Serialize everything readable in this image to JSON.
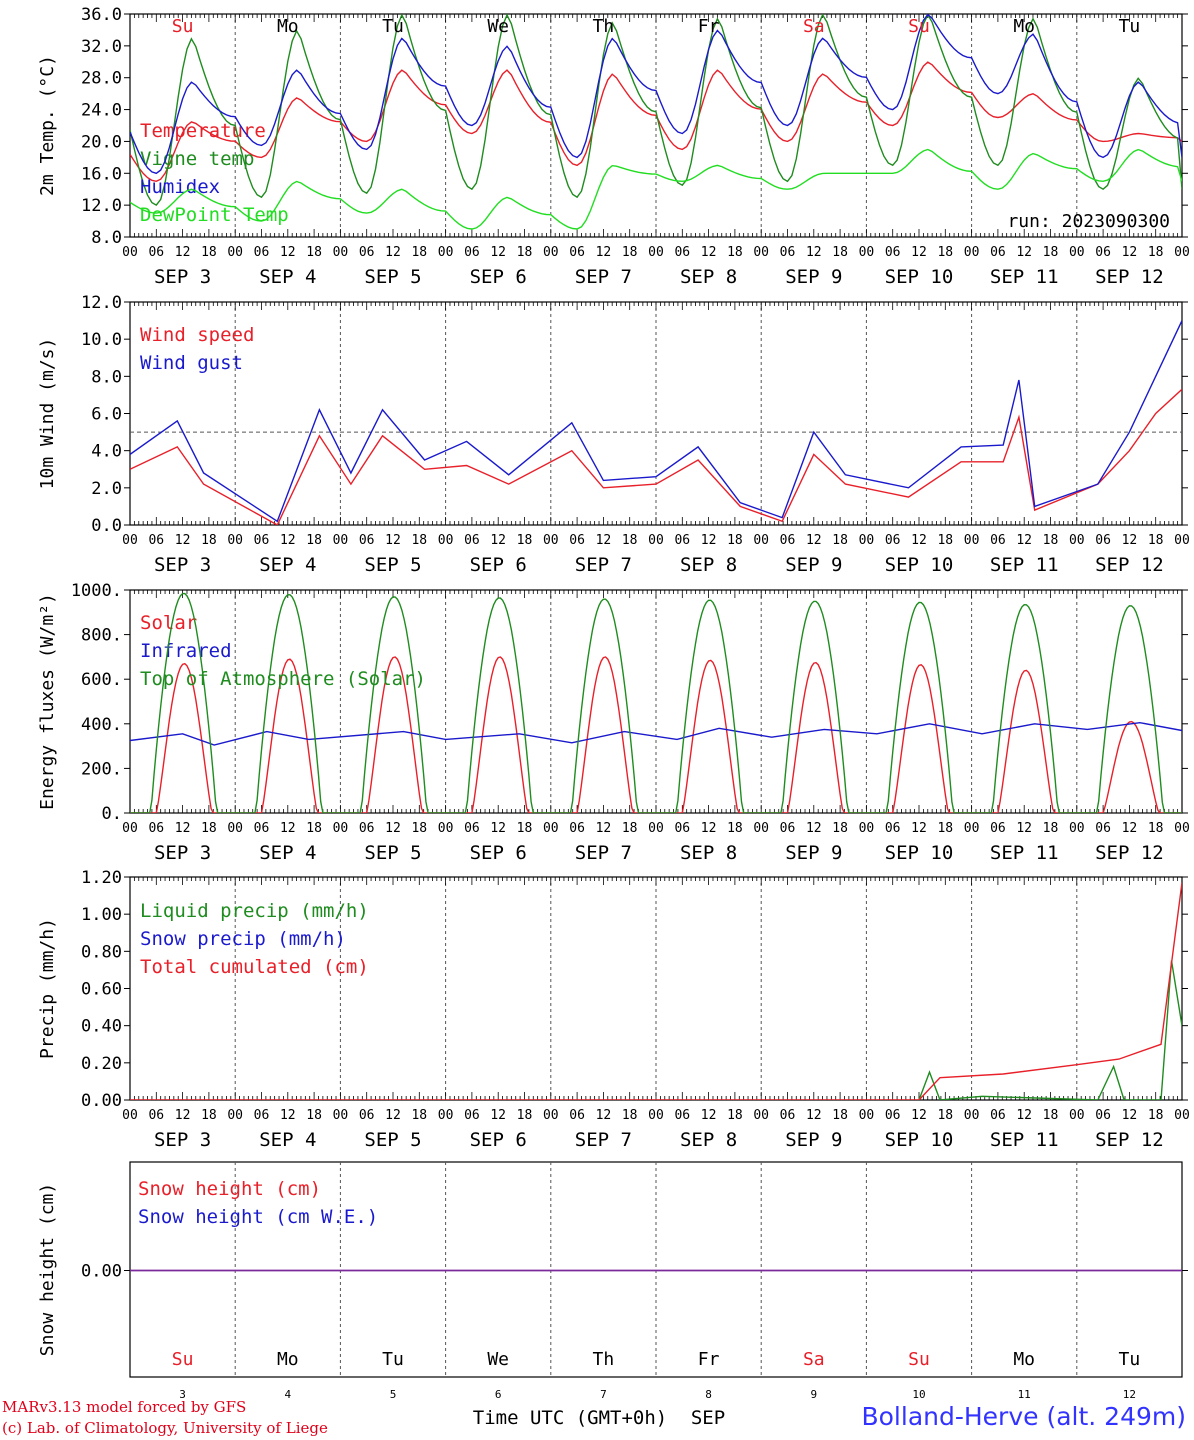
{
  "footer": {
    "model": "MARv3.13 model forced by GFS",
    "credit": "(c) Lab. of Climatology, University of Liege",
    "time_axis": "Time UTC (GMT+0h)",
    "month": "SEP",
    "station": "Bolland-Herve (alt. 249m)",
    "day_numbers": [
      "3",
      "4",
      "5",
      "6",
      "7",
      "8",
      "9",
      "10",
      "11",
      "12"
    ],
    "colors": {
      "credit": "#e0001a",
      "station": "#3333ff"
    }
  },
  "chart_data": {
    "type": "line",
    "x_axis": {
      "hours": [
        "00",
        "06",
        "12",
        "18"
      ],
      "final_hour": "00",
      "dates": [
        "SEP  3",
        "SEP  4",
        "SEP  5",
        "SEP  6",
        "SEP  7",
        "SEP  8",
        "SEP  9",
        "SEP 10",
        "SEP 11",
        "SEP 12"
      ],
      "weekdays": [
        "Su",
        "Mo",
        "Tu",
        "We",
        "Th",
        "Fr",
        "Sa",
        "Su",
        "Mo",
        "Tu"
      ],
      "weekday_colors": [
        "#e8202a",
        "#000000",
        "#000000",
        "#000000",
        "#000000",
        "#000000",
        "#e8202a",
        "#e8202a",
        "#000000",
        "#000000"
      ]
    },
    "panels": [
      {
        "id": "temp",
        "ylabel": "2m Temp. (°C)",
        "ylim": [
          8,
          36
        ],
        "yticks": [
          "8.0",
          "12.0",
          "16.0",
          "20.0",
          "24.0",
          "28.0",
          "32.0",
          "36.0"
        ],
        "annotation": "run: 2023090300",
        "series": [
          {
            "name": "Temperature",
            "color": "#e8202a",
            "min": [
              15,
              18,
              20,
              21,
              17,
              19,
              20,
              22,
              23,
              20
            ],
            "max": [
              22.5,
              25.5,
              29,
              29,
              28.5,
              29,
              28.5,
              30,
              26,
              21
            ]
          },
          {
            "name": "Vigne temp",
            "color": "#1f8c1f",
            "min": [
              12,
              13,
              13.5,
              14,
              13,
              14.5,
              15,
              17,
              17,
              14
            ],
            "max": [
              33,
              34,
              36,
              36,
              35,
              35.5,
              36,
              36,
              35.5,
              28
            ]
          },
          {
            "name": "Humidex",
            "color": "#1a1acc",
            "min": [
              16,
              19.5,
              19,
              22,
              18,
              21,
              22,
              24,
              26,
              18
            ],
            "max": [
              27.5,
              29,
              33,
              32,
              33,
              34,
              33,
              36,
              33.5,
              27.5
            ]
          },
          {
            "name": "DewPoint Temp",
            "color": "#22dd22",
            "min": [
              11,
              10,
              11,
              9,
              9,
              15,
              14,
              16,
              14,
              15
            ],
            "max": [
              14,
              15,
              14,
              13,
              17,
              17,
              16,
              19,
              18.5,
              19
            ]
          }
        ]
      },
      {
        "id": "wind",
        "ylabel": "10m Wind (m/s)",
        "ylim": [
          0,
          12
        ],
        "yticks": [
          "0.0",
          "2.0",
          "4.0",
          "6.0",
          "8.0",
          "10.0",
          "12.0"
        ],
        "reference_line": 5,
        "series": [
          {
            "name": "Wind speed",
            "color": "#e8202a",
            "points": [
              [
                0,
                3
              ],
              [
                0.45,
                4.2
              ],
              [
                0.7,
                2.2
              ],
              [
                1.4,
                0
              ],
              [
                1.8,
                4.8
              ],
              [
                2.1,
                2.2
              ],
              [
                2.4,
                4.8
              ],
              [
                2.8,
                3
              ],
              [
                3.2,
                3.2
              ],
              [
                3.6,
                2.2
              ],
              [
                4.2,
                4
              ],
              [
                4.5,
                2
              ],
              [
                5,
                2.2
              ],
              [
                5.4,
                3.5
              ],
              [
                5.8,
                1
              ],
              [
                6.2,
                0.2
              ],
              [
                6.5,
                3.8
              ],
              [
                6.8,
                2.2
              ],
              [
                7.4,
                1.5
              ],
              [
                7.9,
                3.4
              ],
              [
                8.3,
                3.4
              ],
              [
                8.45,
                5.8
              ],
              [
                8.6,
                0.8
              ],
              [
                9.2,
                2.2
              ],
              [
                9.5,
                4
              ],
              [
                9.75,
                6
              ],
              [
                10,
                7.3
              ]
            ]
          },
          {
            "name": "Wind gust",
            "color": "#1a1acc",
            "points": [
              [
                0,
                3.8
              ],
              [
                0.45,
                5.6
              ],
              [
                0.7,
                2.8
              ],
              [
                1.4,
                0.2
              ],
              [
                1.8,
                6.2
              ],
              [
                2.1,
                2.8
              ],
              [
                2.4,
                6.2
              ],
              [
                2.8,
                3.5
              ],
              [
                3.2,
                4.5
              ],
              [
                3.6,
                2.7
              ],
              [
                4.2,
                5.5
              ],
              [
                4.5,
                2.4
              ],
              [
                5,
                2.6
              ],
              [
                5.4,
                4.2
              ],
              [
                5.8,
                1.2
              ],
              [
                6.2,
                0.4
              ],
              [
                6.5,
                5
              ],
              [
                6.8,
                2.7
              ],
              [
                7.4,
                2
              ],
              [
                7.9,
                4.2
              ],
              [
                8.3,
                4.3
              ],
              [
                8.45,
                7.8
              ],
              [
                8.6,
                1
              ],
              [
                9.2,
                2.2
              ],
              [
                9.5,
                5
              ],
              [
                9.75,
                8
              ],
              [
                10,
                11
              ]
            ]
          }
        ]
      },
      {
        "id": "energy",
        "ylabel": "Energy fluxes (W/m²)",
        "ylim": [
          0,
          1000
        ],
        "yticks": [
          "0.",
          "200.",
          "400.",
          "600.",
          "800.",
          "1000."
        ],
        "series": [
          {
            "name": "Solar",
            "color": "#e8202a",
            "peaks": [
              670,
              690,
              700,
              700,
              700,
              685,
              675,
              665,
              640,
              410
            ]
          },
          {
            "name": "Infrared",
            "color": "#1a1acc",
            "points": [
              [
                0,
                325
              ],
              [
                0.5,
                355
              ],
              [
                0.8,
                305
              ],
              [
                1.3,
                365
              ],
              [
                1.7,
                330
              ],
              [
                2.6,
                365
              ],
              [
                3,
                330
              ],
              [
                3.7,
                355
              ],
              [
                4.2,
                315
              ],
              [
                4.7,
                365
              ],
              [
                5.2,
                330
              ],
              [
                5.6,
                380
              ],
              [
                6.1,
                340
              ],
              [
                6.6,
                375
              ],
              [
                7.1,
                355
              ],
              [
                7.6,
                400
              ],
              [
                8.1,
                355
              ],
              [
                8.6,
                400
              ],
              [
                9.1,
                375
              ],
              [
                9.6,
                405
              ],
              [
                10,
                370
              ]
            ]
          },
          {
            "name": "Top of Atmosphere (Solar)",
            "color": "#1f8c1f",
            "peaks": [
              985,
              980,
              970,
              965,
              960,
              955,
              950,
              945,
              935,
              930
            ]
          }
        ]
      },
      {
        "id": "precip",
        "ylabel": "Precip (mm/h)",
        "ylim": [
          0,
          1.2
        ],
        "yticks": [
          "0.00",
          "0.20",
          "0.40",
          "0.60",
          "0.80",
          "1.00",
          "1.20"
        ],
        "series": [
          {
            "name": "Liquid precip (mm/h)",
            "color": "#1f8c1f",
            "points": [
              [
                7.5,
                0
              ],
              [
                7.6,
                0.15
              ],
              [
                7.7,
                0
              ],
              [
                8.1,
                0.02
              ],
              [
                9.2,
                0
              ],
              [
                9.35,
                0.18
              ],
              [
                9.45,
                0
              ],
              [
                9.8,
                0
              ],
              [
                9.9,
                0.75
              ],
              [
                10,
                0.4
              ]
            ]
          },
          {
            "name": "Snow precip (mm/h)",
            "color": "#1a1acc",
            "points": []
          },
          {
            "name": "Total cumulated (cm)",
            "color": "#e8202a",
            "points": [
              [
                0,
                0
              ],
              [
                7.5,
                0
              ],
              [
                7.7,
                0.12
              ],
              [
                8.3,
                0.14
              ],
              [
                9,
                0.19
              ],
              [
                9.4,
                0.22
              ],
              [
                9.8,
                0.3
              ],
              [
                10,
                1.17
              ]
            ]
          }
        ]
      },
      {
        "id": "snow",
        "ylabel": "Snow height (cm)",
        "yticks": [
          "0.00"
        ],
        "series": [
          {
            "name": "Snow height (cm)",
            "color": "#e8202a",
            "value": 0
          },
          {
            "name": "Snow height (cm W.E.)",
            "color": "#1a1acc",
            "value": 0
          }
        ]
      }
    ]
  }
}
